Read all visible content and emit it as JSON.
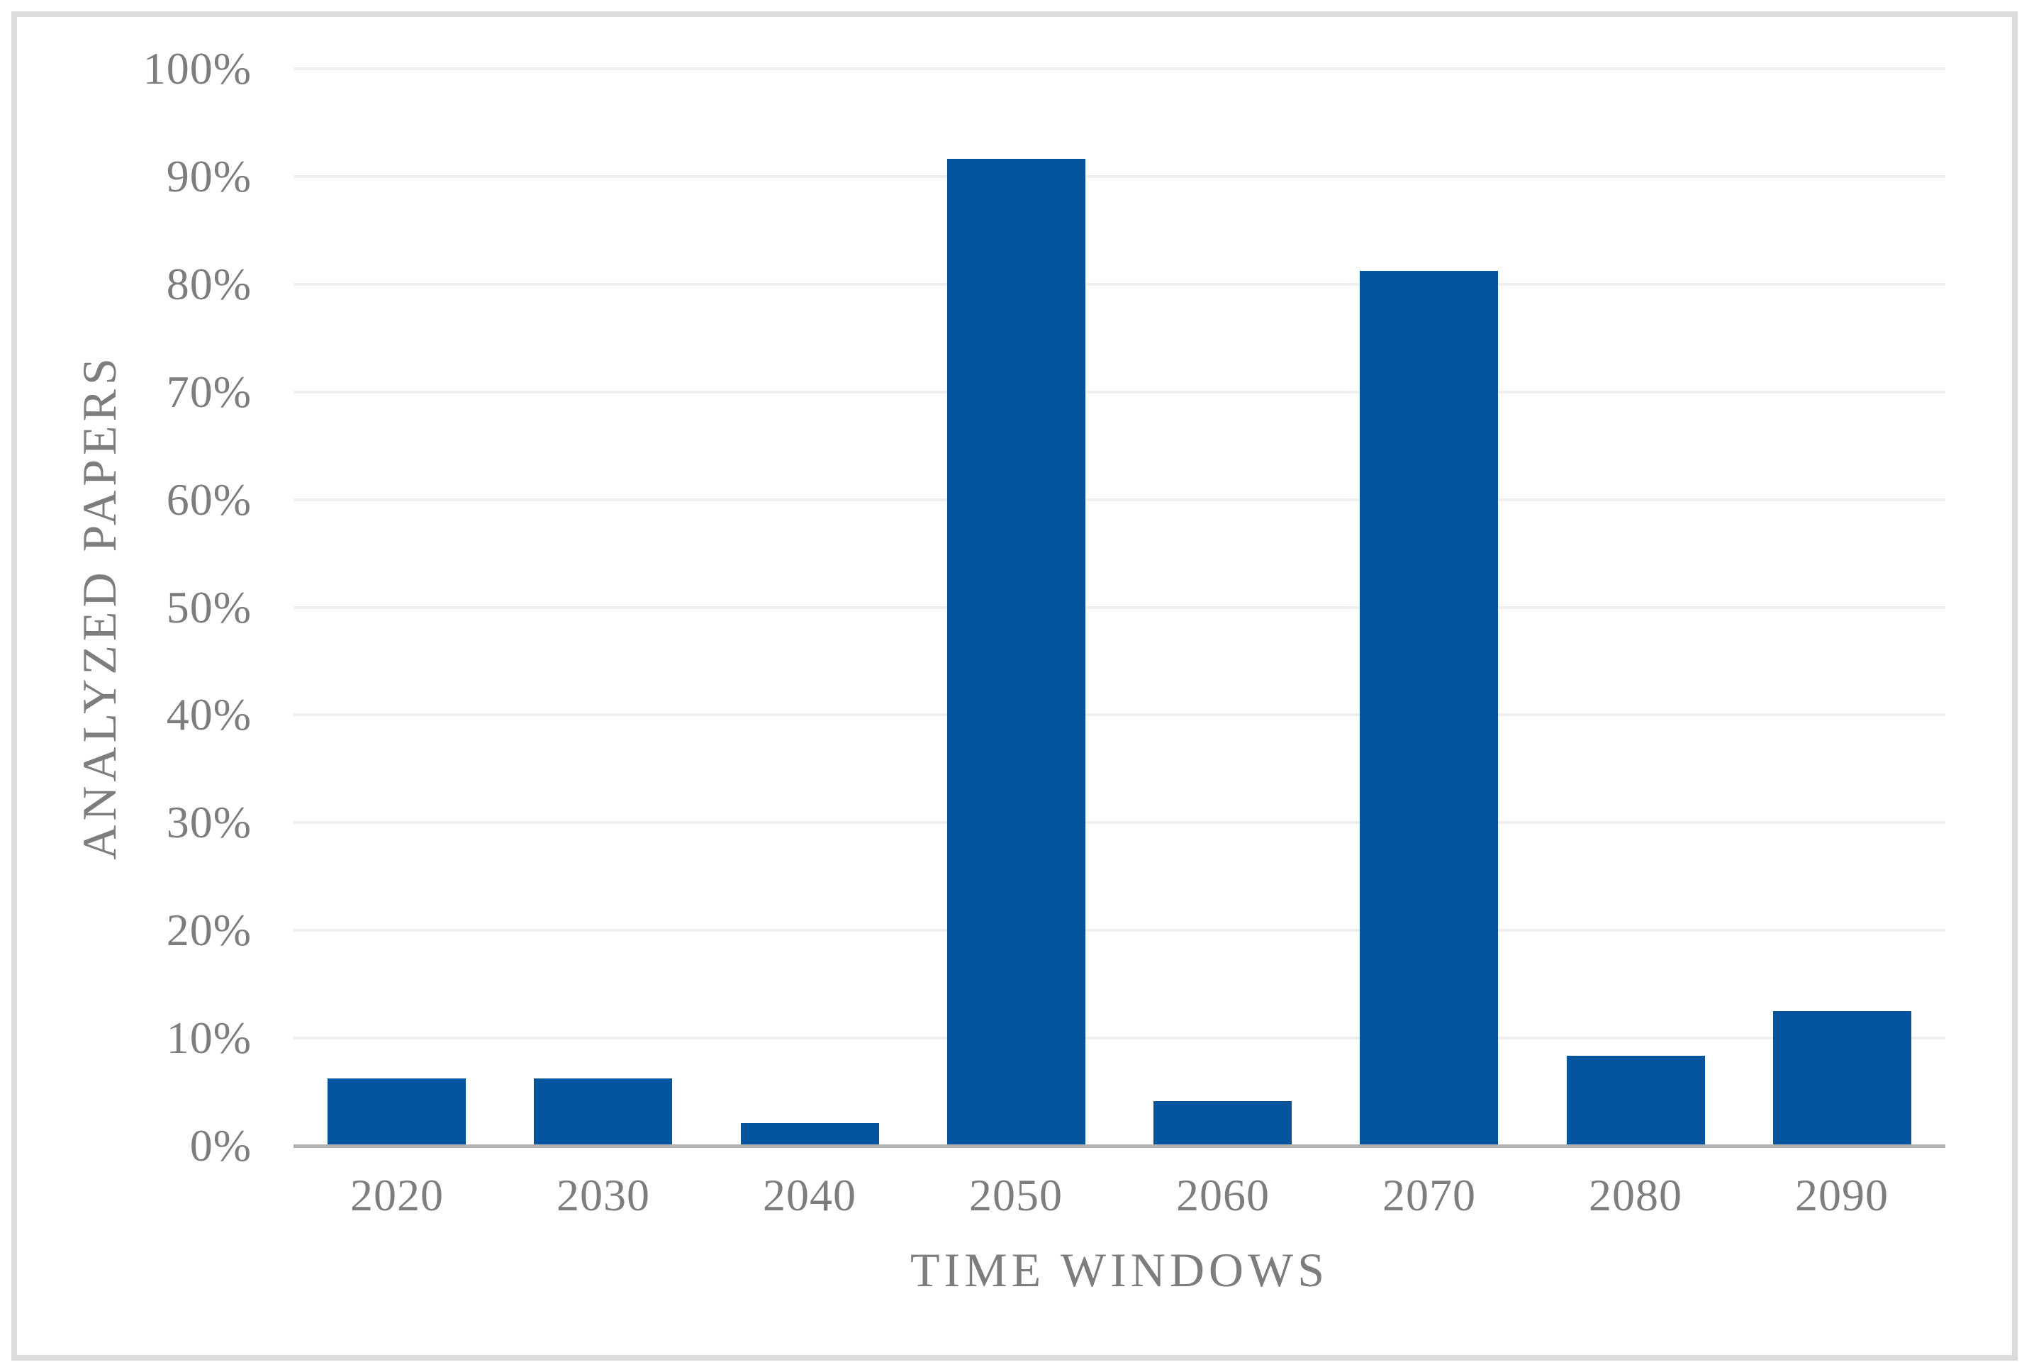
{
  "figure": {
    "kind": "static-bar-chart-figure",
    "border_color": "#DBDBDB",
    "background": "#FFFFFF"
  },
  "chart_data": {
    "type": "bar",
    "title": "",
    "categories": [
      "2020",
      "2030",
      "2040",
      "2050",
      "2060",
      "2070",
      "2080",
      "2090"
    ],
    "values": [
      6.25,
      6.25,
      2.08,
      91.67,
      4.17,
      81.25,
      8.33,
      12.5
    ],
    "series_name": "Analyzed papers share",
    "xlabel": "TIME WINDOWS",
    "ylabel": "ANALYZED PAPERS",
    "y_unit": "%",
    "ylim": [
      0,
      100
    ],
    "y_tick_values": [
      0,
      10,
      20,
      30,
      40,
      50,
      60,
      70,
      80,
      90,
      100
    ],
    "y_tick_labels": [
      "0%",
      "10%",
      "20%",
      "30%",
      "40%",
      "50%",
      "60%",
      "70%",
      "80%",
      "90%",
      "100%"
    ],
    "grid": "horizontal",
    "legend": "none",
    "colors": {
      "bar": "#04559D",
      "gridline": "#EFEFEF",
      "axis_line": "#B3B3B3",
      "text": "#7D7D7D"
    }
  }
}
